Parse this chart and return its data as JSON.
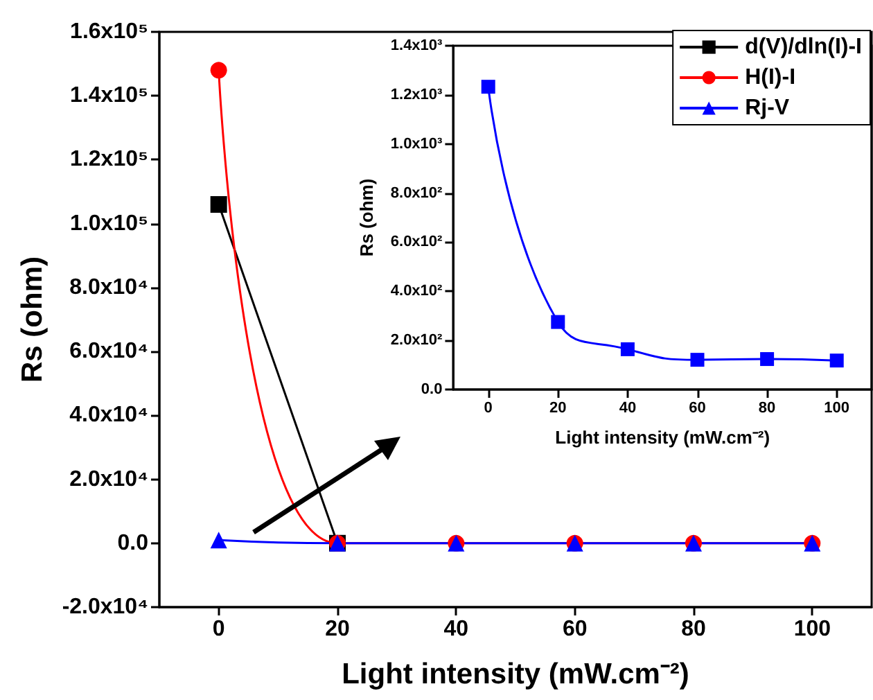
{
  "chart_data": [
    {
      "type": "line",
      "xlabel": "Light intensity (mW.cm⁻²)",
      "ylabel": "Rs (ohm)",
      "x": [
        0,
        20,
        40,
        60,
        80,
        100
      ],
      "series": [
        {
          "name": "d(V)/dln(I)-I",
          "color": "#000000",
          "marker": "square",
          "values": [
            106000,
            0,
            null,
            null,
            null,
            null
          ]
        },
        {
          "name": "H(I)-I",
          "color": "#ff0000",
          "marker": "circle",
          "values": [
            148000,
            0,
            0,
            0,
            0,
            0
          ]
        },
        {
          "name": "Rj-V",
          "color": "#0000ff",
          "marker": "triangle",
          "values": [
            1000,
            0,
            0,
            0,
            0,
            0
          ]
        }
      ],
      "xlim": [
        -10,
        110
      ],
      "xticks": [
        0,
        20,
        40,
        60,
        80,
        100
      ],
      "ylim": [
        -20000,
        160000
      ],
      "yticks": [
        {
          "value": -20000,
          "label": "-2.0x10⁴"
        },
        {
          "value": 0,
          "label": "0.0"
        },
        {
          "value": 20000,
          "label": "2.0x10⁴"
        },
        {
          "value": 40000,
          "label": "4.0x10⁴"
        },
        {
          "value": 60000,
          "label": "6.0x10⁴"
        },
        {
          "value": 80000,
          "label": "8.0x10⁴"
        },
        {
          "value": 100000,
          "label": "1.0x10⁵"
        },
        {
          "value": 120000,
          "label": "1.2x10⁵"
        },
        {
          "value": 140000,
          "label": "1.4x10⁵"
        },
        {
          "value": 160000,
          "label": "1.6x10⁵"
        }
      ],
      "legend": "top right"
    },
    {
      "type": "line",
      "xlabel": "Light intensity (mW.cm⁻²)",
      "ylabel": "Rs (ohm)",
      "x": [
        0,
        20,
        40,
        60,
        80,
        100
      ],
      "series": [
        {
          "color": "#0000ff",
          "marker": "square",
          "values": [
            1233,
            275,
            164,
            121,
            124,
            118
          ]
        }
      ],
      "xlim": [
        -10,
        110
      ],
      "xticks": [
        0,
        20,
        40,
        60,
        80,
        100
      ],
      "ylim": [
        0,
        1400
      ],
      "yticks": [
        {
          "value": 0,
          "label": "0.0"
        },
        {
          "value": 200,
          "label": "2.0x10²"
        },
        {
          "value": 400,
          "label": "4.0x10²"
        },
        {
          "value": 600,
          "label": "6.0x10²"
        },
        {
          "value": 800,
          "label": "8.0x10²"
        },
        {
          "value": 1000,
          "label": "1.0x10³"
        },
        {
          "value": 1200,
          "label": "1.2x10³"
        },
        {
          "value": 1400,
          "label": "1.4x10³"
        }
      ]
    }
  ]
}
